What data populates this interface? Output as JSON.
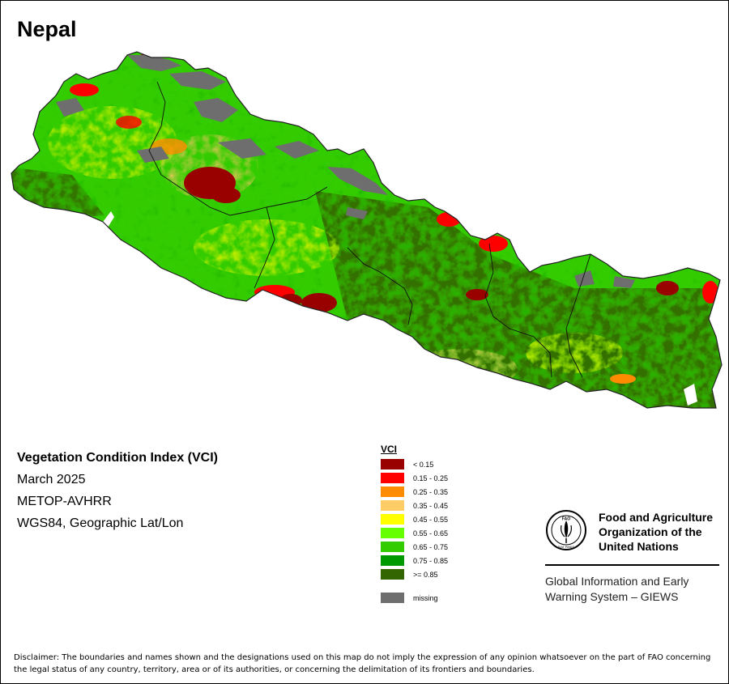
{
  "map": {
    "country": "Nepal",
    "product": "Vegetation Condition Index (VCI)",
    "period": "March 2025",
    "sensor": "METOP-AVHRR",
    "projection": "WGS84, Geographic Lat/Lon"
  },
  "legend": {
    "title": "VCI",
    "classes": [
      {
        "label": "< 0.15",
        "color": "#990000"
      },
      {
        "label": "0.15 - 0.25",
        "color": "#ff0000"
      },
      {
        "label": "0.25 - 0.35",
        "color": "#ff8c00"
      },
      {
        "label": "0.35 - 0.45",
        "color": "#ffcc66"
      },
      {
        "label": "0.45 - 0.55",
        "color": "#ffff00"
      },
      {
        "label": "0.55 - 0.65",
        "color": "#66ff00"
      },
      {
        "label": "0.65 - 0.75",
        "color": "#33cc00"
      },
      {
        "label": "0.75 - 0.85",
        "color": "#009900"
      },
      {
        "label": ">= 0.85",
        "color": "#336600"
      }
    ],
    "missing": {
      "label": "missing",
      "color": "#6e6e6e"
    }
  },
  "organization": {
    "logo_icon": "fao-logo-icon",
    "name_lines": [
      "Food and Agriculture",
      "Organization of the",
      "United Nations"
    ],
    "logo_text": [
      "FAO",
      "FIAT PANIS"
    ],
    "system_lines": [
      "Global Information and Early",
      "Warning System – GIEWS"
    ]
  },
  "disclaimer": "Disclaimer: The boundaries and names shown and the designations used on this map do not imply the expression of any opinion whatsoever on the part of FAO concerning the legal status of any country, territory, area or of its authorities, or concerning the delimitation of its frontiers and boundaries."
}
